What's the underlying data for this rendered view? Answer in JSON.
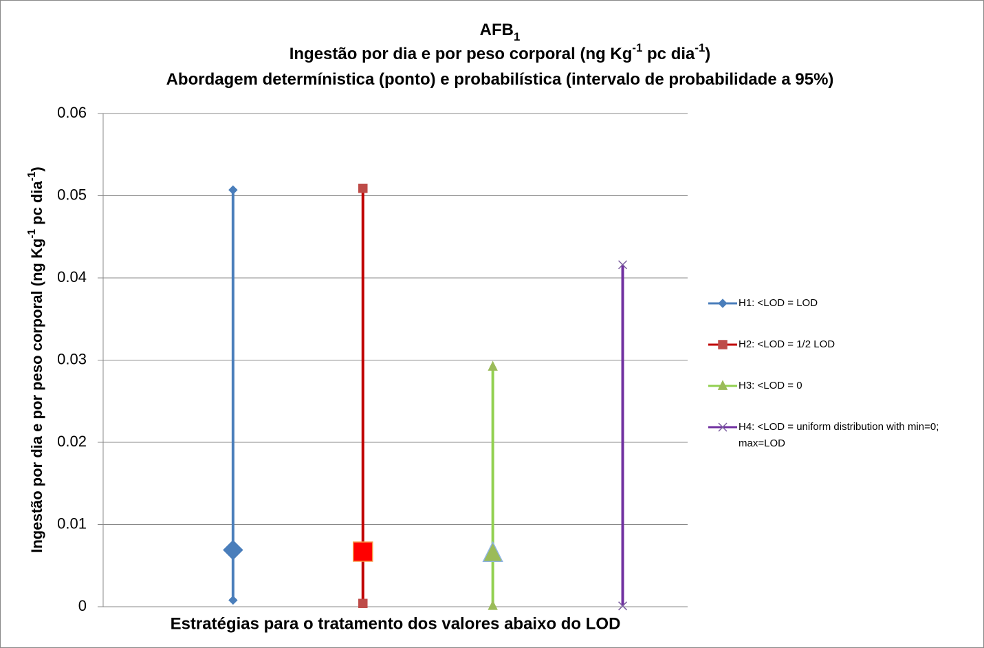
{
  "chart_data": {
    "type": "range",
    "title": [
      [
        {
          "text": "AFB"
        },
        {
          "text": "1",
          "shift": "sub"
        }
      ],
      [
        {
          "text": "Ingestão por dia e por peso corporal (ng Kg"
        },
        {
          "text": "-1",
          "shift": "super"
        },
        {
          "text": " pc dia"
        },
        {
          "text": "-1",
          "shift": "super"
        },
        {
          "text": ")"
        }
      ],
      [
        {
          "text": "Abordagem determínistica (ponto) e probabilística  (intervalo de probabilidade  a 95%)"
        }
      ]
    ],
    "y_label": [
      {
        "text": "Ingestão por dia e por peso corporal (ng Kg"
      },
      {
        "text": "-1",
        "shift": "super"
      },
      {
        "text": " pc dia"
      },
      {
        "text": "-1",
        "shift": "super"
      },
      {
        "text": ")"
      }
    ],
    "x_label": "Estratégias para o tratamento dos valores abaixo do LOD",
    "ylim": [
      0,
      0.06
    ],
    "yticks": [
      0,
      0.01,
      0.02,
      0.03,
      0.04,
      0.05,
      0.06
    ],
    "grid": true,
    "legend": "right",
    "series": [
      {
        "name": "H1: <LOD = LOD",
        "color": "#4a7ebb",
        "marker_color": "#4a7ebb",
        "marker": "diamond",
        "low": 0.0008,
        "high": 0.0507,
        "estimate": 0.0069,
        "estimate_color": "#4a7ebb",
        "estimate_edge": "#4a7ebb"
      },
      {
        "name": "H2: <LOD = 1/2 LOD",
        "color": "#c00000",
        "marker_color": "#be4b48",
        "marker": "square",
        "low": 0.0004,
        "high": 0.0509,
        "estimate": 0.0067,
        "estimate_color": "#ff0000",
        "estimate_edge": "#f79646"
      },
      {
        "name": "H3: <LOD = 0",
        "color": "#92d050",
        "marker_color": "#9bbb59",
        "marker": "triangle",
        "low": 0.0001,
        "high": 0.0292,
        "estimate": 0.0065,
        "estimate_color": "#9bbb59",
        "estimate_edge": "#8eb4e3"
      },
      {
        "name": "H4: <LOD = uniform distribution with min=0; max=LOD",
        "color": "#7030a0",
        "marker_color": "#7d60a0",
        "marker": "x",
        "low": 0.0001,
        "high": 0.0416,
        "estimate": null
      }
    ]
  }
}
